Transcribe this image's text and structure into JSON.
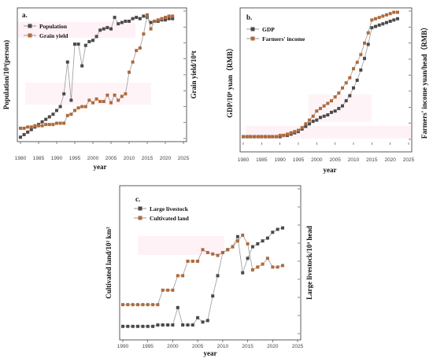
{
  "colors": {
    "series_dark": "#4a4a4a",
    "series_brown": "#b06a3b",
    "line_grey": "#9a9a9a",
    "highlight_pink": "#fde6f0"
  },
  "chart_data": [
    {
      "panel": "a.",
      "type": "line",
      "xlabel": "year",
      "ylabel": "Population/10⁴(person)",
      "y2label": "Grain yield/10⁴t",
      "xlim": [
        1980,
        2025
      ],
      "xticks": [
        1980,
        1985,
        1990,
        1995,
        2000,
        2005,
        2010,
        2015,
        2020,
        2025
      ],
      "ylim": [
        0,
        100
      ],
      "grid": false,
      "legend_position": "top-left",
      "series": [
        {
          "name": "Population",
          "marker": "square-dark",
          "x": [
            1980,
            1981,
            1982,
            1983,
            1984,
            1985,
            1986,
            1987,
            1988,
            1989,
            1990,
            1991,
            1992,
            1993,
            1994,
            1995,
            1996,
            1997,
            1998,
            1999,
            2000,
            2001,
            2002,
            2003,
            2004,
            2005,
            2006,
            2007,
            2008,
            2009,
            2010,
            2011,
            2012,
            2013,
            2014,
            2015,
            2016,
            2017,
            2018,
            2019,
            2020,
            2021,
            2022
          ],
          "values": [
            1,
            3,
            5,
            7,
            9,
            11,
            13,
            15,
            17,
            19,
            22,
            25,
            35,
            60,
            30,
            74,
            74,
            57,
            73,
            76,
            77,
            80,
            85,
            86,
            87,
            86,
            95,
            90,
            91,
            92,
            92,
            94,
            95,
            94,
            96,
            95,
            91,
            92,
            92,
            93,
            93,
            94,
            94
          ]
        },
        {
          "name": "Grain yield",
          "marker": "square-brown",
          "x": [
            1980,
            1981,
            1982,
            1983,
            1984,
            1985,
            1986,
            1987,
            1988,
            1989,
            1990,
            1991,
            1992,
            1993,
            1994,
            1995,
            1996,
            1997,
            1998,
            1999,
            2000,
            2001,
            2002,
            2003,
            2004,
            2005,
            2006,
            2007,
            2008,
            2009,
            2010,
            2011,
            2012,
            2013,
            2014,
            2015,
            2016,
            2017,
            2018,
            2019,
            2020,
            2021,
            2022
          ],
          "values": [
            8,
            8,
            9,
            9,
            10,
            10,
            10,
            11,
            11,
            11,
            12,
            12,
            12,
            18,
            19,
            22,
            24,
            25,
            25,
            30,
            28,
            31,
            29,
            29,
            34,
            28,
            34,
            30,
            33,
            35,
            52,
            60,
            69,
            71,
            82,
            97,
            86,
            92,
            93,
            94,
            95,
            96,
            96
          ]
        }
      ]
    },
    {
      "panel": "b.",
      "type": "line",
      "xlabel": "year",
      "ylabel": "GDP/10⁸ yuan（RMB）",
      "y2label": "Farmers' income yuan/head（RMB）",
      "xlim": [
        1980,
        2025
      ],
      "xticks": [
        1980,
        1985,
        1990,
        1995,
        2000,
        2005,
        2010,
        2015,
        2020,
        2025
      ],
      "ylim": [
        0,
        100
      ],
      "grid": false,
      "legend_position": "top-left",
      "series": [
        {
          "name": "GDP",
          "marker": "square-dark",
          "x": [
            1980,
            1981,
            1982,
            1983,
            1984,
            1985,
            1986,
            1987,
            1988,
            1989,
            1990,
            1991,
            1992,
            1993,
            1994,
            1995,
            1996,
            1997,
            1998,
            1999,
            2000,
            2001,
            2002,
            2003,
            2004,
            2005,
            2006,
            2007,
            2008,
            2009,
            2010,
            2011,
            2012,
            2013,
            2014,
            2015,
            2016,
            2017,
            2018,
            2019,
            2020,
            2021,
            2022
          ],
          "values": [
            2,
            2,
            2,
            2,
            2,
            2,
            2,
            2,
            2,
            2,
            2,
            3,
            3,
            4,
            5,
            6,
            8,
            10,
            12,
            14,
            15,
            17,
            18,
            19,
            21,
            22,
            24,
            26,
            30,
            34,
            40,
            46,
            54,
            63,
            74,
            87,
            88,
            89,
            90,
            91,
            92,
            93,
            94
          ]
        },
        {
          "name": "Farmers' income",
          "marker": "square-brown",
          "x": [
            1980,
            1981,
            1982,
            1983,
            1984,
            1985,
            1986,
            1987,
            1988,
            1989,
            1990,
            1991,
            1992,
            1993,
            1994,
            1995,
            1996,
            1997,
            1998,
            1999,
            2000,
            2001,
            2002,
            2003,
            2004,
            2005,
            2006,
            2007,
            2008,
            2009,
            2010,
            2011,
            2012,
            2013,
            2014,
            2015,
            2016,
            2017,
            2018,
            2019,
            2020,
            2021,
            2022
          ],
          "values": [
            2,
            2,
            2,
            2,
            2,
            2,
            2,
            2,
            2,
            2,
            3,
            3,
            4,
            5,
            6,
            7,
            9,
            12,
            15,
            18,
            22,
            24,
            26,
            28,
            30,
            33,
            36,
            40,
            44,
            48,
            55,
            60,
            66,
            75,
            83,
            93,
            94,
            95,
            96,
            97,
            98,
            99,
            99
          ]
        }
      ]
    },
    {
      "panel": "c.",
      "type": "line",
      "xlabel": "year",
      "ylabel": "Cultivated land/10² km²",
      "y2label": "Large livestock/10⁴ head",
      "xlim": [
        1990,
        2025
      ],
      "xticks": [
        1990,
        1995,
        2000,
        2005,
        2010,
        2015,
        2020,
        2025
      ],
      "ylim": [
        0,
        100
      ],
      "grid": false,
      "legend_position": "top-left",
      "series": [
        {
          "name": "Large livestock",
          "marker": "square-dark",
          "x": [
            1990,
            1991,
            1992,
            1993,
            1994,
            1995,
            1996,
            1997,
            1998,
            1999,
            2000,
            2001,
            2002,
            2003,
            2004,
            2005,
            2006,
            2007,
            2008,
            2009,
            2010,
            2011,
            2012,
            2013,
            2014,
            2015,
            2016,
            2017,
            2018,
            2019,
            2020,
            2021,
            2022
          ],
          "values": [
            5,
            5,
            5,
            5,
            5,
            5,
            5,
            6,
            6,
            6,
            6,
            18,
            6,
            6,
            6,
            11,
            8,
            9,
            26,
            40,
            56,
            58,
            60,
            67,
            42,
            52,
            60,
            62,
            64,
            66,
            70,
            72,
            73
          ]
        },
        {
          "name": "Cultivated land",
          "marker": "square-brown",
          "x": [
            1990,
            1991,
            1992,
            1993,
            1994,
            1995,
            1996,
            1997,
            1998,
            1999,
            2000,
            2001,
            2002,
            2003,
            2004,
            2005,
            2006,
            2007,
            2008,
            2009,
            2010,
            2011,
            2012,
            2013,
            2014,
            2015,
            2016,
            2017,
            2018,
            2019,
            2020,
            2021,
            2022
          ],
          "values": [
            20,
            20,
            20,
            20,
            20,
            20,
            20,
            20,
            30,
            30,
            30,
            40,
            40,
            50,
            50,
            50,
            58,
            56,
            55,
            54,
            56,
            58,
            60,
            64,
            68,
            62,
            44,
            46,
            48,
            52,
            46,
            46,
            47
          ]
        }
      ]
    }
  ]
}
